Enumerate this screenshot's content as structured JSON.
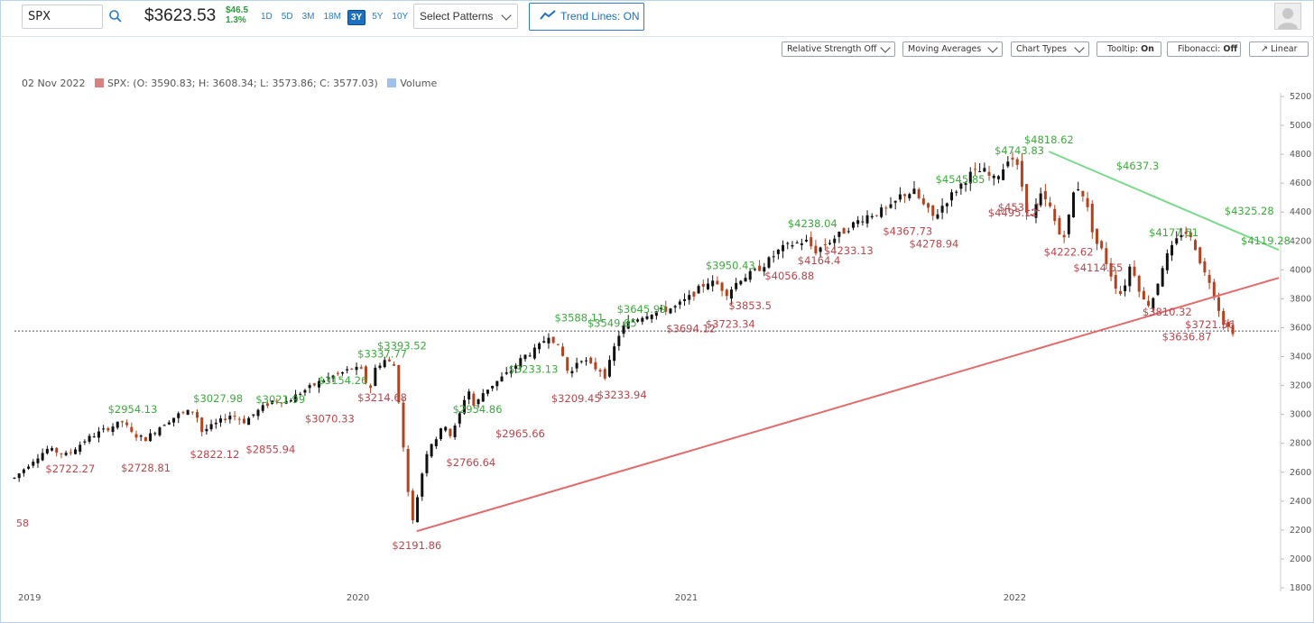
{
  "toolbar": {
    "symbol": "SPX",
    "price": "$3623.53",
    "change_value": "$46.5",
    "change_pct": "1.3%",
    "ranges": [
      "1D",
      "5D",
      "3M",
      "18M",
      "3Y",
      "5Y",
      "10Y"
    ],
    "active_range": "3Y",
    "patterns_label": "Select Patterns",
    "trend_label": "Trend Lines: ON"
  },
  "options": {
    "relative_strength": "Relative Strength Off",
    "moving_averages": "Moving Averages",
    "chart_types": "Chart Types",
    "tooltip_label": "Tooltip: ",
    "tooltip_value": "On",
    "fibonacci_label": "Fibonacci: ",
    "fibonacci_value": "Off",
    "scale": "Linear"
  },
  "legend": {
    "date": "02 Nov 2022",
    "series": "SPX: (O: 3590.83; H: 3608.34; L: 3573.86; C: 3577.03)",
    "volume": "Volume"
  },
  "colors": {
    "up": "#111111",
    "down": "#b5421d",
    "high_label": "#3daa3d",
    "low_label": "#b9464c",
    "resistance": "#7ad98a",
    "support": "#e26a6a"
  },
  "chart_data": {
    "type": "candlestick",
    "y_axis": {
      "min": 1800,
      "max": 5200,
      "step": 200,
      "side": "right"
    },
    "x_labels": [
      {
        "label": "2019",
        "t": 0
      },
      {
        "label": "2020",
        "t": 1.0
      },
      {
        "label": "2021",
        "t": 2.0
      },
      {
        "label": "2022",
        "t": 3.0
      }
    ],
    "x_range": [
      0,
      3.85
    ],
    "price_path": [
      [
        0.0,
        2560
      ],
      [
        0.06,
        2690
      ],
      [
        0.1,
        2760
      ],
      [
        0.16,
        2720
      ],
      [
        0.22,
        2830
      ],
      [
        0.28,
        2900
      ],
      [
        0.33,
        2950
      ],
      [
        0.36,
        2860
      ],
      [
        0.4,
        2830
      ],
      [
        0.45,
        2930
      ],
      [
        0.5,
        3000
      ],
      [
        0.55,
        3030
      ],
      [
        0.57,
        2880
      ],
      [
        0.61,
        2930
      ],
      [
        0.66,
        3000
      ],
      [
        0.7,
        2950
      ],
      [
        0.75,
        3040
      ],
      [
        0.79,
        3100
      ],
      [
        0.83,
        3090
      ],
      [
        0.87,
        3150
      ],
      [
        0.91,
        3200
      ],
      [
        0.95,
        3250
      ],
      [
        0.99,
        3280
      ],
      [
        1.03,
        3320
      ],
      [
        1.06,
        3300
      ],
      [
        1.08,
        3150
      ],
      [
        1.1,
        3330
      ],
      [
        1.13,
        3380
      ],
      [
        1.16,
        3330
      ],
      [
        1.17,
        3100
      ],
      [
        1.185,
        2750
      ],
      [
        1.2,
        2450
      ],
      [
        1.215,
        2230
      ],
      [
        1.23,
        2480
      ],
      [
        1.26,
        2780
      ],
      [
        1.29,
        2850
      ],
      [
        1.31,
        2940
      ],
      [
        1.33,
        2840
      ],
      [
        1.36,
        3030
      ],
      [
        1.38,
        3190
      ],
      [
        1.4,
        3050
      ],
      [
        1.43,
        3160
      ],
      [
        1.47,
        3230
      ],
      [
        1.51,
        3300
      ],
      [
        1.55,
        3400
      ],
      [
        1.59,
        3450
      ],
      [
        1.63,
        3560
      ],
      [
        1.67,
        3400
      ],
      [
        1.69,
        3260
      ],
      [
        1.72,
        3400
      ],
      [
        1.76,
        3330
      ],
      [
        1.79,
        3300
      ],
      [
        1.8,
        3260
      ],
      [
        1.82,
        3420
      ],
      [
        1.84,
        3550
      ],
      [
        1.86,
        3620
      ],
      [
        1.89,
        3660
      ],
      [
        1.93,
        3700
      ],
      [
        1.97,
        3720
      ],
      [
        2.01,
        3740
      ],
      [
        2.05,
        3800
      ],
      [
        2.08,
        3860
      ],
      [
        2.11,
        3920
      ],
      [
        2.14,
        3900
      ],
      [
        2.17,
        3840
      ],
      [
        2.21,
        3940
      ],
      [
        2.25,
        3980
      ],
      [
        2.29,
        4050
      ],
      [
        2.33,
        4140
      ],
      [
        2.37,
        4180
      ],
      [
        2.41,
        4200
      ],
      [
        2.44,
        4130
      ],
      [
        2.47,
        4180
      ],
      [
        2.51,
        4240
      ],
      [
        2.55,
        4310
      ],
      [
        2.59,
        4370
      ],
      [
        2.63,
        4400
      ],
      [
        2.67,
        4430
      ],
      [
        2.7,
        4520
      ],
      [
        2.74,
        4540
      ],
      [
        2.77,
        4440
      ],
      [
        2.8,
        4360
      ],
      [
        2.83,
        4460
      ],
      [
        2.87,
        4560
      ],
      [
        2.91,
        4660
      ],
      [
        2.95,
        4690
      ],
      [
        2.98,
        4620
      ],
      [
        3.01,
        4700
      ],
      [
        3.03,
        4800
      ],
      [
        3.05,
        4740
      ],
      [
        3.07,
        4560
      ],
      [
        3.08,
        4430
      ],
      [
        3.1,
        4350
      ],
      [
        3.12,
        4520
      ],
      [
        3.15,
        4450
      ],
      [
        3.17,
        4320
      ],
      [
        3.19,
        4200
      ],
      [
        3.21,
        4360
      ],
      [
        3.23,
        4590
      ],
      [
        3.25,
        4550
      ],
      [
        3.27,
        4400
      ],
      [
        3.29,
        4200
      ],
      [
        3.31,
        4140
      ],
      [
        3.33,
        4020
      ],
      [
        3.35,
        3900
      ],
      [
        3.37,
        3830
      ],
      [
        3.39,
        3960
      ],
      [
        3.4,
        4060
      ],
      [
        3.42,
        3900
      ],
      [
        3.44,
        3780
      ],
      [
        3.46,
        3760
      ],
      [
        3.48,
        3900
      ],
      [
        3.5,
        4060
      ],
      [
        3.53,
        4170
      ],
      [
        3.56,
        4280
      ],
      [
        3.58,
        4220
      ],
      [
        3.6,
        4140
      ],
      [
        3.62,
        3990
      ],
      [
        3.64,
        3920
      ],
      [
        3.66,
        3780
      ],
      [
        3.68,
        3640
      ],
      [
        3.7,
        3590
      ],
      [
        3.71,
        3577
      ]
    ],
    "high_labels": [
      {
        "t": 0.36,
        "v": 2954.13,
        "text": "$2954.13"
      },
      {
        "t": 0.62,
        "v": 3027.98,
        "text": "$3027.98"
      },
      {
        "t": 0.81,
        "v": 3021.99,
        "text": "$3021.99"
      },
      {
        "t": 1.0,
        "v": 3154.26,
        "text": "$3154.26"
      },
      {
        "t": 1.12,
        "v": 3337.77,
        "text": "$3337.77"
      },
      {
        "t": 1.18,
        "v": 3393.52,
        "text": "$3393.52"
      },
      {
        "t": 1.41,
        "v": 2954.86,
        "text": "$2954.86"
      },
      {
        "t": 1.58,
        "v": 3233.13,
        "text": "$3233.13"
      },
      {
        "t": 1.72,
        "v": 3588.11,
        "text": "$3588.11"
      },
      {
        "t": 1.82,
        "v": 3549.85,
        "text": "$3549.85"
      },
      {
        "t": 1.91,
        "v": 3645.99,
        "text": "$3645.99"
      },
      {
        "t": 2.18,
        "v": 3950.43,
        "text": "$3950.43"
      },
      {
        "t": 2.43,
        "v": 4238.04,
        "text": "$4238.04"
      },
      {
        "t": 2.88,
        "v": 4545.85,
        "text": "$4545.85"
      },
      {
        "t": 3.06,
        "v": 4743.83,
        "text": "$4743.83"
      },
      {
        "t": 3.15,
        "v": 4818.62,
        "text": "$4818.62"
      },
      {
        "t": 3.42,
        "v": 4637.3,
        "text": "$4637.3"
      },
      {
        "t": 3.53,
        "v": 4177.51,
        "text": "$4177.51"
      },
      {
        "t": 3.76,
        "v": 4325.28,
        "text": "$4325.28"
      },
      {
        "t": 3.81,
        "v": 4119.28,
        "text": "$4119.28"
      }
    ],
    "low_labels": [
      {
        "t": 0.17,
        "v": 2722.27,
        "text": "$2722.27"
      },
      {
        "t": 0.4,
        "v": 2728.81,
        "text": "$2728.81"
      },
      {
        "t": 0.61,
        "v": 2822.12,
        "text": "$2822.12"
      },
      {
        "t": 0.78,
        "v": 2855.94,
        "text": "$2855.94"
      },
      {
        "t": 0.96,
        "v": 3070.33,
        "text": "$3070.33"
      },
      {
        "t": 1.12,
        "v": 3214.68,
        "text": "$3214.68"
      },
      {
        "t": 1.225,
        "v": 2191.86,
        "text": "$2191.86"
      },
      {
        "t": 1.39,
        "v": 2766.64,
        "text": "$2766.64"
      },
      {
        "t": 1.54,
        "v": 2965.66,
        "text": "$2965.66"
      },
      {
        "t": 1.71,
        "v": 3209.45,
        "text": "$3209.45"
      },
      {
        "t": 1.85,
        "v": 3233.94,
        "text": "$3233.94"
      },
      {
        "t": 2.06,
        "v": 3694.12,
        "text": "$3694.12"
      },
      {
        "t": 2.18,
        "v": 3723.34,
        "text": "$3723.34"
      },
      {
        "t": 2.24,
        "v": 3853.5,
        "text": "$3853.5"
      },
      {
        "t": 2.36,
        "v": 4056.88,
        "text": "$4056.88"
      },
      {
        "t": 2.45,
        "v": 4164.4,
        "text": "$4164.4"
      },
      {
        "t": 2.54,
        "v": 4233.13,
        "text": "$4233.13"
      },
      {
        "t": 2.72,
        "v": 4367.73,
        "text": "$4367.73"
      },
      {
        "t": 2.8,
        "v": 4278.94,
        "text": "$4278.94"
      },
      {
        "t": 3.06,
        "v": 4531.1,
        "text": "$4531.1"
      },
      {
        "t": 3.04,
        "v": 4495.12,
        "text": "$4495.12"
      },
      {
        "t": 3.21,
        "v": 4222.62,
        "text": "$4222.62"
      },
      {
        "t": 3.3,
        "v": 4114.65,
        "text": "$4114.65"
      },
      {
        "t": 3.51,
        "v": 3810.32,
        "text": "$3810.32"
      },
      {
        "t": 3.64,
        "v": 3721.56,
        "text": "$3721.56"
      },
      {
        "t": 3.57,
        "v": 3636.87,
        "text": "$3636.87"
      }
    ],
    "edge_label": "58",
    "trend_lines": [
      {
        "kind": "resistance",
        "from": [
          3.15,
          4818.62
        ],
        "to": [
          3.85,
          4138
        ]
      },
      {
        "kind": "support",
        "from": [
          1.225,
          2191.86
        ],
        "to": [
          3.85,
          3945
        ]
      }
    ],
    "reference_price": 3577.03
  }
}
